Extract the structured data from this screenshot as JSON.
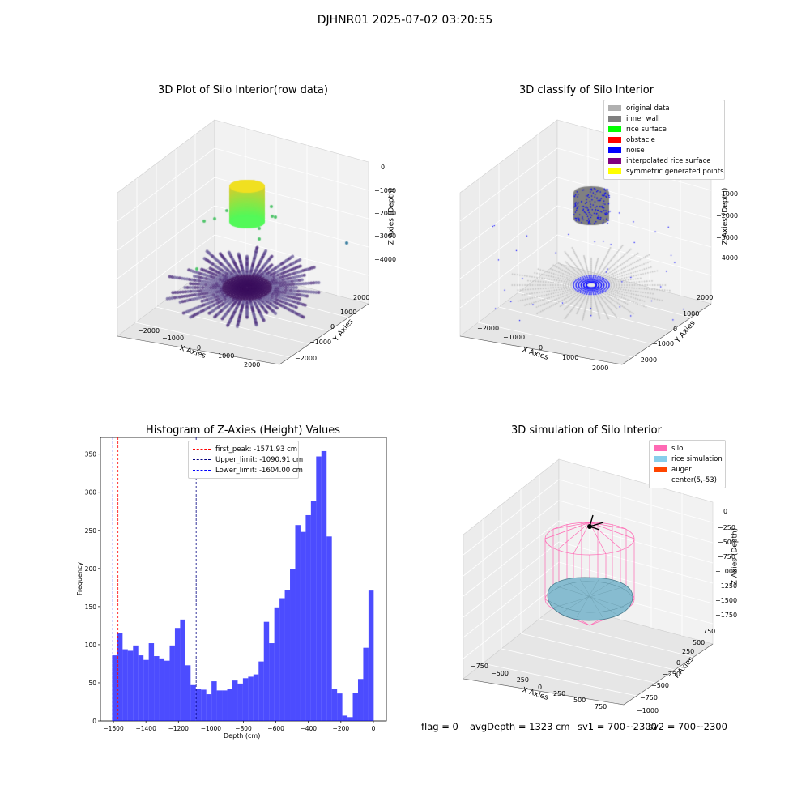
{
  "figure": {
    "title": "DJHNR01 2025-07-02 03:20:55"
  },
  "panels": {
    "raw": {
      "title": "3D Plot of Silo Interior(row data)",
      "xlabel": "X Axies",
      "ylabel": "Y Axies",
      "zlabel": "Z Axies (Depth)",
      "xticks": [
        "−2000",
        "−1000",
        "0",
        "1000",
        "2000"
      ],
      "yticks": [
        "−2000",
        "−1000",
        "0",
        "1000",
        "2000"
      ],
      "zticks": [
        "0",
        "−1000",
        "−2000",
        "−3000",
        "−4000"
      ]
    },
    "classify": {
      "title": "3D classify of Silo Interior",
      "xlabel": "X Axies",
      "ylabel": "Y Axies",
      "zlabel": "Z Axies (Depth)",
      "xticks": [
        "−2000",
        "−1000",
        "0",
        "1000",
        "2000"
      ],
      "yticks": [
        "−2000",
        "−1000",
        "0",
        "1000",
        "2000"
      ],
      "zticks": [
        "−1000",
        "−2000",
        "−3000",
        "−4000"
      ],
      "legend": [
        {
          "label": "original data",
          "color": "#b0b0b0"
        },
        {
          "label": "inner wall",
          "color": "#808080"
        },
        {
          "label": "rice surface",
          "color": "#00ff00"
        },
        {
          "label": "obstacle",
          "color": "#ff0000"
        },
        {
          "label": "noise",
          "color": "#0000ff"
        },
        {
          "label": "interpolated rice surface",
          "color": "#800080"
        },
        {
          "label": "symmetric generated points",
          "color": "#ffff00"
        }
      ]
    },
    "simulation": {
      "title": "3D simulation of Silo Interior",
      "xlabel": "X Axies",
      "ylabel": "Y Axies",
      "zlabel": "Z Axies (Depth)",
      "xticks": [
        "−750",
        "−500",
        "−250",
        "0",
        "250",
        "500",
        "750"
      ],
      "yticks": [
        "−1000",
        "−750",
        "−500",
        "−250",
        "0",
        "250",
        "500",
        "750"
      ],
      "zticks": [
        "0",
        "−250",
        "−500",
        "−750",
        "−1000",
        "−1250",
        "−1500",
        "−1750"
      ],
      "legend": [
        {
          "label": "silo",
          "color": "#ff69b4"
        },
        {
          "label": "rice simulation",
          "color": "#87ceeb"
        },
        {
          "label": "auger",
          "color": "#ff4500"
        },
        {
          "label": "center(5,-53)",
          "color": "#ffffff"
        }
      ]
    }
  },
  "status": {
    "flag": "flag = 0",
    "avg_depth": "avgDepth = 1323 cm",
    "sv1": "sv1 = 700~2300",
    "sv2": "sv2 = 700~2300"
  },
  "chart_data": [
    {
      "type": "bar",
      "title": "Histogram of Z-Axies (Height) Values",
      "xlabel": "Depth (cm)",
      "ylabel": "Frequency",
      "xlim": [
        -1680,
        80
      ],
      "ylim": [
        0,
        372
      ],
      "xticks": [
        -1600,
        -1400,
        -1200,
        -1000,
        -800,
        -600,
        -400,
        -200,
        0
      ],
      "xtick_labels": [
        "−1600",
        "−1400",
        "−1200",
        "−1000",
        "−800",
        "−600",
        "−400",
        "−200",
        "0"
      ],
      "yticks": [
        0,
        50,
        100,
        150,
        200,
        250,
        300,
        350
      ],
      "bar_color": "#0000ff",
      "bin_start": -1608,
      "bin_width": 32.2,
      "values": [
        86,
        115,
        94,
        92,
        99,
        86,
        80,
        102,
        85,
        82,
        79,
        99,
        122,
        133,
        73,
        47,
        42,
        41,
        35,
        52,
        40,
        40,
        42,
        53,
        49,
        56,
        58,
        61,
        78,
        130,
        102,
        149,
        161,
        172,
        199,
        257,
        248,
        270,
        289,
        347,
        354,
        242,
        42,
        36,
        7,
        5,
        37,
        55,
        96,
        171
      ],
      "lines": [
        {
          "label": "first_peak: -1571.93 cm",
          "x": -1571.93,
          "color": "#ff0000"
        },
        {
          "label": "Upper_limit: -1090.91 cm",
          "x": -1090.91,
          "color": "#000080"
        },
        {
          "label": "Lower_limit: -1604.00 cm",
          "x": -1604.0,
          "color": "#0000ff"
        }
      ]
    }
  ]
}
